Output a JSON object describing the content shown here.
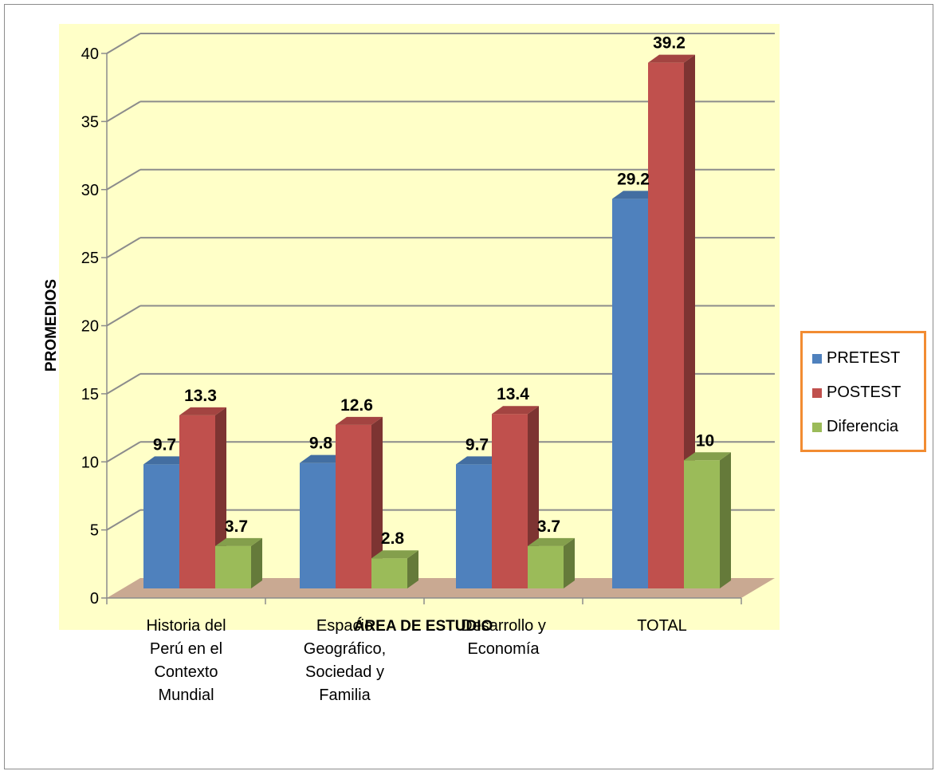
{
  "chart_data": {
    "type": "bar",
    "title": "",
    "xlabel": "ÁREA DE ESTUDIO",
    "ylabel": "PROMEDIOS",
    "ylim": [
      0,
      40
    ],
    "yticks": [
      0,
      5,
      10,
      15,
      20,
      25,
      30,
      35,
      40
    ],
    "categories": [
      [
        "Historia del",
        "Perú en el",
        "Contexto",
        "Mundial"
      ],
      [
        "Espacio",
        "Geográfico,",
        "Sociedad y",
        "Familia"
      ],
      [
        "Desarrollo y",
        "Economía"
      ],
      [
        "TOTAL"
      ]
    ],
    "series": [
      {
        "name": "PRETEST",
        "values": [
          9.7,
          9.8,
          9.7,
          29.2
        ],
        "labels": [
          "9.7",
          "9.8",
          "9.7",
          "29.2"
        ],
        "color": "#4f81bd"
      },
      {
        "name": "POSTEST",
        "values": [
          13.3,
          12.6,
          13.4,
          39.2
        ],
        "labels": [
          "13.3",
          "12.6",
          "13.4",
          "39.2"
        ],
        "color": "#c0504d"
      },
      {
        "name": "Diferencia",
        "values": [
          3.7,
          2.8,
          3.7,
          10
        ],
        "labels": [
          "3.7",
          "2.8",
          "3.7",
          "10"
        ],
        "color": "#9bbb59"
      }
    ],
    "grid": true,
    "legend_position": "right",
    "style": "3d-clustered-column",
    "colors": {
      "plot_background": "#ffffc8",
      "floor": "#c9a992",
      "gridline": "#8c8c8c",
      "legend_border": "#f28c32"
    }
  }
}
